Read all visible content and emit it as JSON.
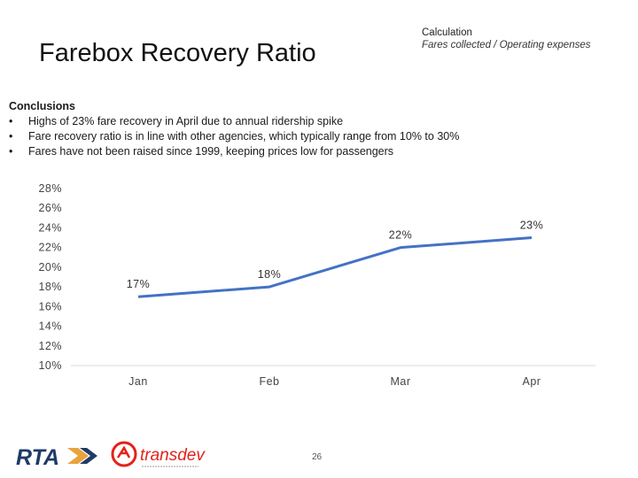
{
  "header": {
    "title": "Farebox Recovery Ratio",
    "calculation_heading": "Calculation",
    "calculation_formula": "Fares collected / Operating expenses"
  },
  "conclusions": {
    "heading": "Conclusions",
    "items": [
      "Highs of 23% fare recovery in April due to annual ridership spike",
      "Fare recovery ratio is in line with other agencies, which typically range from 10% to 30%",
      "Fares have not been raised since 1999, keeping prices low for passengers"
    ]
  },
  "chart_data": {
    "type": "line",
    "title": "",
    "xlabel": "",
    "ylabel": "",
    "categories": [
      "Jan",
      "Feb",
      "Mar",
      "Apr"
    ],
    "series": [
      {
        "values": [
          17,
          18,
          22,
          23
        ],
        "color": "#4472c4"
      }
    ],
    "data_labels": [
      "17%",
      "18%",
      "22%",
      "23%"
    ],
    "ylim": [
      10,
      28
    ],
    "yticks": [
      10,
      12,
      14,
      16,
      18,
      20,
      22,
      24,
      26,
      28
    ],
    "ytick_labels": [
      "10%",
      "12%",
      "14%",
      "16%",
      "18%",
      "20%",
      "22%",
      "24%",
      "26%",
      "28%"
    ],
    "grid": false
  },
  "footer": {
    "page_number": "26",
    "logo_rta_text": "RTA",
    "logo_transdev_text": "transdev"
  },
  "colors": {
    "line": "#4472c4",
    "axis": "#d9d9d9",
    "rta_blue": "#1f3a68",
    "rta_orange": "#e8a33d",
    "transdev_red": "#e2231a"
  }
}
